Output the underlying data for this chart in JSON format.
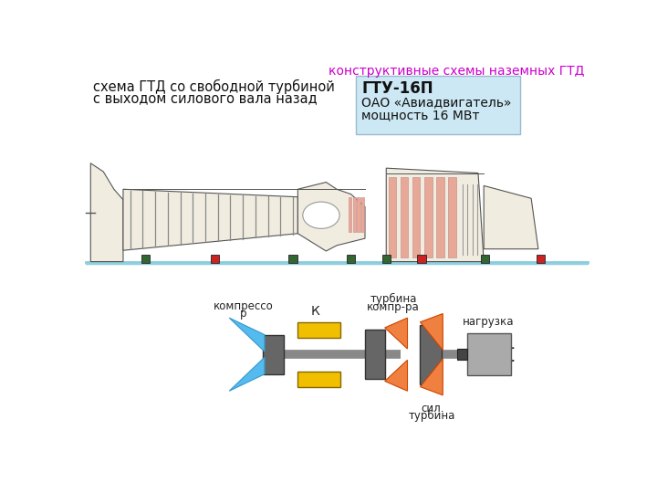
{
  "title_top_right": "конструктивные схемы наземных ГТД",
  "title_top_right_color": "#cc00cc",
  "title_left_line1": "схема ГТД со свободной турбиной",
  "title_left_line2": "с выходом силового вала назад",
  "info_box_title": "ГТУ-16П",
  "info_box_line2": "ОАО «Авиадвигатель»",
  "info_box_line3": "мощность 16 МВт",
  "info_box_bg": "#cce8f4",
  "bg_color": "#ffffff",
  "label_compressor": "компрессо\nр",
  "label_K": "К",
  "label_turbine_top": "турбина\nкомпр-ра",
  "label_free_turbine": "сил.\nтурбина",
  "label_load": "нагрузка",
  "compressor_blue": "#55bbee",
  "compressor_dark": "#666666",
  "turbine_orange": "#f08040",
  "turbine_dark": "#666666",
  "shaft_color": "#888888",
  "combustor_yellow": "#f0c000",
  "load_color": "#aaaaaa",
  "engine_outline": "#555555",
  "engine_fill": "#f0ece0",
  "engine_salmon": "#e8a898",
  "mount_green": "#336633",
  "mount_red": "#cc2222",
  "floor_color": "#88ccdd"
}
